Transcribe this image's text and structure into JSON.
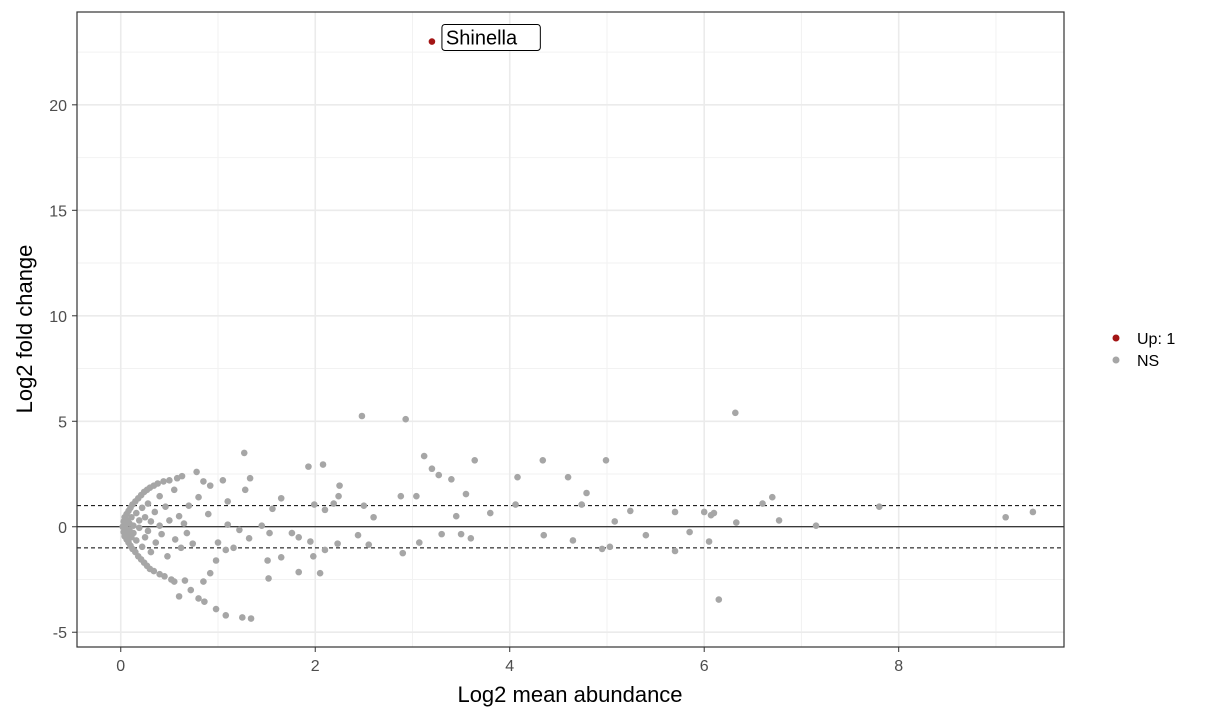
{
  "chart_data": {
    "type": "scatter",
    "title": "",
    "xlabel": "Log2 mean abundance",
    "ylabel": "Log2 fold change",
    "xlim": [
      -0.45,
      9.7
    ],
    "ylim": [
      -5.7,
      24.4
    ],
    "x_ticks": [
      0,
      2,
      4,
      6,
      8
    ],
    "y_ticks": [
      -5,
      0,
      5,
      10,
      15,
      20
    ],
    "x_tick_labels": [
      "0",
      "2",
      "4",
      "6",
      "8"
    ],
    "y_tick_labels": [
      "-5",
      "0",
      "5",
      "10",
      "15",
      "20"
    ],
    "grid": true,
    "reference_lines": [
      {
        "y": 0,
        "style": "solid"
      },
      {
        "y": 1,
        "style": "dashed"
      },
      {
        "y": -1,
        "style": "dashed"
      }
    ],
    "legend": {
      "position": "right",
      "entries": [
        {
          "label": "Up: 1",
          "color": "#a31515"
        },
        {
          "label": "NS",
          "color": "#a6a6a6"
        }
      ]
    },
    "annotations": [
      {
        "text": "Shinella",
        "x": 3.2,
        "y": 23.0
      }
    ],
    "series": [
      {
        "name": "Up: 1",
        "color": "#a31515",
        "points": [
          [
            3.2,
            23.0
          ]
        ]
      },
      {
        "name": "NS",
        "color": "#a6a6a6",
        "points": [
          [
            2.48,
            5.25
          ],
          [
            2.93,
            5.1
          ],
          [
            6.32,
            5.4
          ],
          [
            1.27,
            3.5
          ],
          [
            3.12,
            3.35
          ],
          [
            3.2,
            2.75
          ],
          [
            3.27,
            2.45
          ],
          [
            3.64,
            3.15
          ],
          [
            4.34,
            3.15
          ],
          [
            4.99,
            3.15
          ],
          [
            4.6,
            2.35
          ],
          [
            4.08,
            2.35
          ],
          [
            1.33,
            2.3
          ],
          [
            1.28,
            1.75
          ],
          [
            1.93,
            2.85
          ],
          [
            2.08,
            2.95
          ],
          [
            2.25,
            1.95
          ],
          [
            2.24,
            1.45
          ],
          [
            2.88,
            1.45
          ],
          [
            3.04,
            1.45
          ],
          [
            3.4,
            2.25
          ],
          [
            3.55,
            1.55
          ],
          [
            4.79,
            1.6
          ],
          [
            4.74,
            1.05
          ],
          [
            4.06,
            1.05
          ],
          [
            6.7,
            1.4
          ],
          [
            6.6,
            1.1
          ],
          [
            1.05,
            2.2
          ],
          [
            0.92,
            1.95
          ],
          [
            0.85,
            2.15
          ],
          [
            0.8,
            1.4
          ],
          [
            0.78,
            2.6
          ],
          [
            0.9,
            0.6
          ],
          [
            1.1,
            1.2
          ],
          [
            1.65,
            1.35
          ],
          [
            1.56,
            0.85
          ],
          [
            1.99,
            1.05
          ],
          [
            2.19,
            1.1
          ],
          [
            2.5,
            1.0
          ],
          [
            2.1,
            0.8
          ],
          [
            2.6,
            0.45
          ],
          [
            3.45,
            0.5
          ],
          [
            3.8,
            0.65
          ],
          [
            5.08,
            0.25
          ],
          [
            5.24,
            0.75
          ],
          [
            5.7,
            0.7
          ],
          [
            6.0,
            0.7
          ],
          [
            6.07,
            0.55
          ],
          [
            6.1,
            0.65
          ],
          [
            6.33,
            0.2
          ],
          [
            6.77,
            0.3
          ],
          [
            7.15,
            0.05
          ],
          [
            7.8,
            0.95
          ],
          [
            9.1,
            0.45
          ],
          [
            9.38,
            0.7
          ],
          [
            1.1,
            0.1
          ],
          [
            1.22,
            -0.15
          ],
          [
            1.45,
            0.05
          ],
          [
            1.53,
            -0.3
          ],
          [
            1.76,
            -0.3
          ],
          [
            1.83,
            -0.5
          ],
          [
            1.95,
            -0.7
          ],
          [
            2.1,
            -1.1
          ],
          [
            2.23,
            -0.8
          ],
          [
            2.44,
            -0.4
          ],
          [
            2.55,
            -0.85
          ],
          [
            2.9,
            -1.25
          ],
          [
            3.07,
            -0.75
          ],
          [
            3.3,
            -0.35
          ],
          [
            3.5,
            -0.35
          ],
          [
            3.6,
            -0.55
          ],
          [
            4.35,
            -0.4
          ],
          [
            4.65,
            -0.65
          ],
          [
            4.95,
            -1.05
          ],
          [
            5.03,
            -0.95
          ],
          [
            5.4,
            -0.4
          ],
          [
            5.7,
            -1.15
          ],
          [
            5.85,
            -0.25
          ],
          [
            6.05,
            -0.7
          ],
          [
            6.15,
            -3.45
          ],
          [
            1.0,
            -0.75
          ],
          [
            1.08,
            -1.1
          ],
          [
            1.16,
            -1.0
          ],
          [
            1.32,
            -0.55
          ],
          [
            1.51,
            -1.6
          ],
          [
            1.65,
            -1.45
          ],
          [
            1.83,
            -2.15
          ],
          [
            1.98,
            -1.4
          ],
          [
            2.05,
            -2.2
          ],
          [
            1.52,
            -2.45
          ],
          [
            1.25,
            -4.3
          ],
          [
            1.34,
            -4.35
          ],
          [
            1.08,
            -4.2
          ],
          [
            0.98,
            -3.9
          ],
          [
            0.86,
            -3.55
          ],
          [
            0.8,
            -3.4
          ],
          [
            0.72,
            -3.0
          ],
          [
            0.66,
            -2.55
          ],
          [
            0.85,
            -2.6
          ],
          [
            0.92,
            -2.2
          ],
          [
            0.98,
            -1.6
          ],
          [
            0.6,
            -3.3
          ],
          [
            0.02,
            0.0
          ],
          [
            0.03,
            0.25
          ],
          [
            0.03,
            -0.25
          ],
          [
            0.04,
            0.45
          ],
          [
            0.04,
            -0.45
          ],
          [
            0.06,
            0.6
          ],
          [
            0.06,
            -0.6
          ],
          [
            0.08,
            0.75
          ],
          [
            0.08,
            -0.75
          ],
          [
            0.1,
            0.9
          ],
          [
            0.1,
            -0.9
          ],
          [
            0.12,
            1.05
          ],
          [
            0.12,
            -1.05
          ],
          [
            0.15,
            1.2
          ],
          [
            0.15,
            -1.2
          ],
          [
            0.18,
            1.35
          ],
          [
            0.18,
            -1.4
          ],
          [
            0.21,
            1.5
          ],
          [
            0.21,
            -1.55
          ],
          [
            0.24,
            1.65
          ],
          [
            0.24,
            -1.7
          ],
          [
            0.27,
            1.75
          ],
          [
            0.27,
            -1.85
          ],
          [
            0.3,
            1.85
          ],
          [
            0.3,
            -2.0
          ],
          [
            0.34,
            1.95
          ],
          [
            0.34,
            -2.1
          ],
          [
            0.38,
            2.05
          ],
          [
            0.4,
            -2.25
          ],
          [
            0.44,
            2.15
          ],
          [
            0.45,
            -2.35
          ],
          [
            0.5,
            2.2
          ],
          [
            0.52,
            -2.5
          ],
          [
            0.58,
            2.3
          ],
          [
            0.63,
            2.4
          ],
          [
            0.55,
            -2.6
          ],
          [
            0.05,
            0.1
          ],
          [
            0.05,
            -0.1
          ],
          [
            0.07,
            0.3
          ],
          [
            0.07,
            -0.35
          ],
          [
            0.09,
            0.15
          ],
          [
            0.09,
            -0.15
          ],
          [
            0.11,
            0.45
          ],
          [
            0.11,
            -0.5
          ],
          [
            0.13,
            0.05
          ],
          [
            0.13,
            -0.3
          ],
          [
            0.16,
            0.65
          ],
          [
            0.16,
            -0.65
          ],
          [
            0.19,
            0.3
          ],
          [
            0.19,
            -0.05
          ],
          [
            0.22,
            0.9
          ],
          [
            0.22,
            -0.95
          ],
          [
            0.25,
            0.45
          ],
          [
            0.25,
            -0.5
          ],
          [
            0.28,
            1.1
          ],
          [
            0.28,
            -0.2
          ],
          [
            0.31,
            0.25
          ],
          [
            0.31,
            -1.2
          ],
          [
            0.35,
            0.7
          ],
          [
            0.36,
            -0.75
          ],
          [
            0.4,
            1.45
          ],
          [
            0.4,
            0.05
          ],
          [
            0.42,
            -0.35
          ],
          [
            0.46,
            0.95
          ],
          [
            0.48,
            -1.4
          ],
          [
            0.5,
            0.3
          ],
          [
            0.55,
            1.75
          ],
          [
            0.56,
            -0.6
          ],
          [
            0.6,
            0.5
          ],
          [
            0.62,
            -1.0
          ],
          [
            0.65,
            0.15
          ],
          [
            0.68,
            -0.3
          ],
          [
            0.7,
            1.0
          ],
          [
            0.74,
            -0.8
          ]
        ]
      }
    ]
  }
}
